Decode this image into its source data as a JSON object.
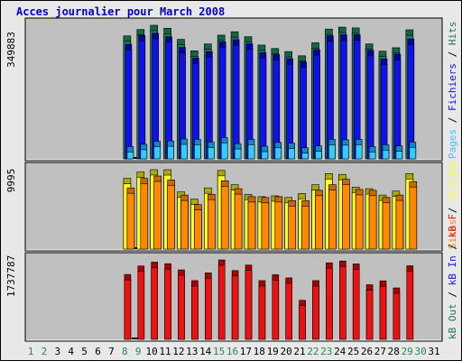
{
  "title": "Acces journalier pour March 2008",
  "colors": {
    "pages": "#33ccff",
    "files": "#1111ee",
    "hits": "#227755",
    "visits": "#ffff22",
    "sites": "#ff8800",
    "kbytes": "#ee1111",
    "plot_bg": "#c0c0c0",
    "frame_bg": "#e8e8e8",
    "title": "#0000cc",
    "weekend_label": "#228855"
  },
  "chart_data": [
    {
      "type": "bar",
      "name": "hits-files-pages",
      "ymax_label": "349883",
      "ymax": 349883,
      "legend": [
        {
          "text": "Hits",
          "color": "#227755"
        },
        {
          "text": "Fichiers",
          "color": "#1111ee"
        },
        {
          "text": "Pages",
          "color": "#33ccff"
        }
      ],
      "days": [
        10,
        11,
        12,
        13,
        14,
        15,
        16,
        17,
        18,
        19,
        20,
        21,
        22,
        23,
        24,
        25,
        26,
        27,
        28,
        29,
        30,
        31
      ],
      "series": [
        {
          "name": "Hits",
          "values": [
            322000,
            339000,
            349883,
            342000,
            313000,
            283000,
            301000,
            324000,
            333000,
            320000,
            298000,
            289000,
            281000,
            270000,
            304000,
            340000,
            345000,
            343000,
            301000,
            282000,
            291000,
            338000
          ]
        },
        {
          "name": "Fichiers",
          "values": [
            300000,
            323000,
            329000,
            320000,
            292000,
            264000,
            281000,
            306000,
            312000,
            301000,
            278000,
            273000,
            262000,
            254000,
            286000,
            322000,
            325000,
            325000,
            284000,
            262000,
            274000,
            314000
          ]
        },
        {
          "name": "Pages",
          "values": [
            32000,
            38000,
            46000,
            47000,
            52000,
            51000,
            44000,
            56000,
            40000,
            51000,
            33000,
            43000,
            41000,
            29000,
            34000,
            51000,
            50000,
            51000,
            32000,
            37000,
            34000,
            44000
          ]
        }
      ]
    },
    {
      "type": "bar",
      "name": "visits-sites",
      "ymax_label": "9995",
      "ymax": 9995,
      "legend": [
        {
          "text": "Visites",
          "color": "#ffff22"
        },
        {
          "text": "Sites",
          "color": "#ff8800"
        }
      ],
      "days": [
        10,
        11,
        12,
        13,
        14,
        15,
        16,
        17,
        18,
        19,
        20,
        21,
        22,
        23,
        24,
        25,
        26,
        27,
        28,
        29,
        30,
        31
      ],
      "series": [
        {
          "name": "Visites",
          "values": [
            8900,
            9700,
            9995,
            9990,
            7200,
            6300,
            7700,
            9900,
            8100,
            6900,
            6600,
            6700,
            6500,
            7000,
            8100,
            9500,
            9400,
            7800,
            7600,
            6800,
            7300,
            9500
          ]
        },
        {
          "name": "Sites",
          "values": [
            7700,
            8900,
            9200,
            8700,
            6800,
            5600,
            6900,
            8600,
            7600,
            6600,
            6500,
            6600,
            6100,
            6100,
            7400,
            8100,
            8800,
            7500,
            7400,
            6500,
            6800,
            8500
          ]
        }
      ]
    },
    {
      "type": "bar",
      "name": "kbytes",
      "ymax_label": "1737787",
      "ymax": 1737787,
      "legend": [
        {
          "text": "kB F",
          "color": "#ee1111"
        },
        {
          "text": "kB In",
          "color": "#1111ee"
        },
        {
          "text": "kB Out",
          "color": "#227755"
        }
      ],
      "days": [
        10,
        11,
        12,
        13,
        14,
        15,
        16,
        17,
        18,
        19,
        20,
        21,
        22,
        23,
        24,
        25,
        26,
        27,
        28,
        29,
        30,
        31
      ],
      "series": [
        {
          "name": "kB F",
          "values": [
            1420000,
            1605000,
            1690000,
            1655000,
            1520000,
            1285000,
            1455000,
            1737787,
            1505000,
            1625000,
            1285000,
            1415000,
            1345000,
            855000,
            1285000,
            1675000,
            1715000,
            1650000,
            1195000,
            1280000,
            1125000,
            1610000
          ]
        }
      ]
    }
  ],
  "x_labels": [
    {
      "day": "1",
      "weekend": true
    },
    {
      "day": "2",
      "weekend": true
    },
    {
      "day": "3",
      "weekend": false
    },
    {
      "day": "4",
      "weekend": false
    },
    {
      "day": "5",
      "weekend": false
    },
    {
      "day": "6",
      "weekend": false
    },
    {
      "day": "7",
      "weekend": false
    },
    {
      "day": "8",
      "weekend": true
    },
    {
      "day": "9",
      "weekend": true
    },
    {
      "day": "10",
      "weekend": false
    },
    {
      "day": "11",
      "weekend": false
    },
    {
      "day": "12",
      "weekend": false
    },
    {
      "day": "13",
      "weekend": false
    },
    {
      "day": "14",
      "weekend": false
    },
    {
      "day": "15",
      "weekend": true
    },
    {
      "day": "16",
      "weekend": true
    },
    {
      "day": "17",
      "weekend": false
    },
    {
      "day": "18",
      "weekend": false
    },
    {
      "day": "19",
      "weekend": false
    },
    {
      "day": "20",
      "weekend": false
    },
    {
      "day": "21",
      "weekend": false
    },
    {
      "day": "22",
      "weekend": true
    },
    {
      "day": "23",
      "weekend": true
    },
    {
      "day": "24",
      "weekend": false
    },
    {
      "day": "25",
      "weekend": false
    },
    {
      "day": "26",
      "weekend": false
    },
    {
      "day": "27",
      "weekend": false
    },
    {
      "day": "28",
      "weekend": false
    },
    {
      "day": "29",
      "weekend": true
    },
    {
      "day": "30",
      "weekend": true
    },
    {
      "day": "31",
      "weekend": false
    }
  ]
}
